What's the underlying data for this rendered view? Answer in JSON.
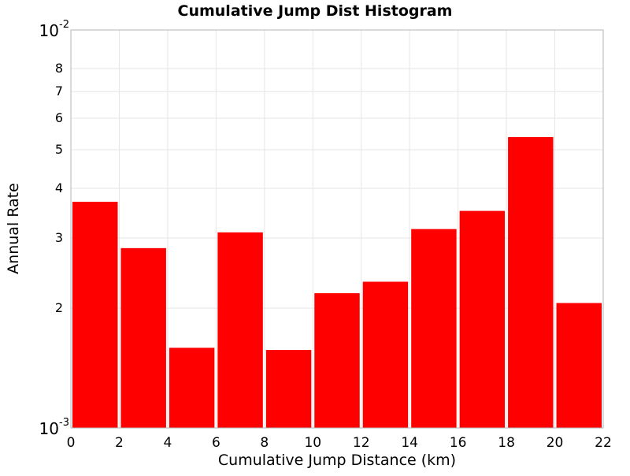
{
  "chart_data": {
    "type": "bar",
    "title": "Cumulative Jump Dist Histogram",
    "xlabel": "Cumulative Jump Distance (km)",
    "ylabel": "Annual Rate",
    "x_scale": "linear",
    "y_scale": "log",
    "xlim": [
      0,
      22
    ],
    "ylim": [
      0.001,
      0.01
    ],
    "x_ticks": [
      0,
      2,
      4,
      6,
      8,
      10,
      12,
      14,
      16,
      18,
      20,
      22
    ],
    "y_major_ticks": [
      {
        "value": 0.01,
        "base": "10",
        "exp": "-2"
      },
      {
        "value": 0.001,
        "base": "10",
        "exp": "-3"
      }
    ],
    "y_minor_ticks": [
      {
        "value": 0.002,
        "label": "2"
      },
      {
        "value": 0.003,
        "label": "3"
      },
      {
        "value": 0.004,
        "label": "4"
      },
      {
        "value": 0.005,
        "label": "5"
      },
      {
        "value": 0.006,
        "label": "6"
      },
      {
        "value": 0.007,
        "label": "7"
      },
      {
        "value": 0.008,
        "label": "8"
      }
    ],
    "grid": true,
    "bar_color": "#ff0000",
    "bins": [
      {
        "x0": 0,
        "x1": 2,
        "value": 0.0037
      },
      {
        "x0": 2,
        "x1": 4,
        "value": 0.00283
      },
      {
        "x0": 4,
        "x1": 6,
        "value": 0.00159
      },
      {
        "x0": 6,
        "x1": 8,
        "value": 0.0031
      },
      {
        "x0": 8,
        "x1": 10,
        "value": 0.00157
      },
      {
        "x0": 10,
        "x1": 12,
        "value": 0.00218
      },
      {
        "x0": 12,
        "x1": 14,
        "value": 0.00233
      },
      {
        "x0": 14,
        "x1": 16,
        "value": 0.00316
      },
      {
        "x0": 16,
        "x1": 18,
        "value": 0.00351
      },
      {
        "x0": 18,
        "x1": 20,
        "value": 0.00538
      },
      {
        "x0": 20,
        "x1": 22,
        "value": 0.00206
      }
    ]
  }
}
